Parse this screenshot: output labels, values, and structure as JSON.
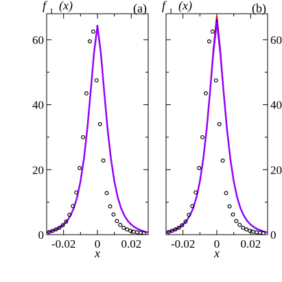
{
  "chart_data": [
    {
      "type": "line",
      "panel_label": "(a)",
      "ylabel": "f",
      "ylabel_sub": "1",
      "ylabel_arg": "(x)",
      "xlabel": "x",
      "xlim": [
        -0.03,
        0.03
      ],
      "ylim": [
        0,
        68
      ],
      "xticks": [
        -0.02,
        0,
        0.02
      ],
      "xtick_labels": [
        "-0.02",
        "0",
        "0.02"
      ],
      "yticks": [
        0,
        20,
        40,
        60
      ],
      "ytick_labels": [
        "0",
        "20",
        "40",
        "60"
      ],
      "ytick_side": "left",
      "grid": false,
      "series": [
        {
          "style": "line",
          "color": "#ff0000",
          "x": [
            -0.03,
            -0.028,
            -0.026,
            -0.024,
            -0.022,
            -0.02,
            -0.018,
            -0.016,
            -0.014,
            -0.012,
            -0.01,
            -0.008,
            -0.006,
            -0.004,
            -0.002,
            0,
            0.002,
            0.004,
            0.006,
            0.008,
            0.01,
            0.012,
            0.014,
            0.016,
            0.018,
            0.02,
            0.022,
            0.024,
            0.026,
            0.028,
            0.03
          ],
          "y": [
            0.7,
            0.9,
            1.3,
            1.7,
            2.3,
            3.1,
            4.2,
            5.8,
            8.1,
            11.5,
            16.4,
            23.3,
            32.5,
            44.0,
            56.0,
            64.3,
            56.0,
            44.0,
            32.5,
            23.3,
            16.4,
            11.5,
            8.1,
            5.8,
            4.2,
            3.1,
            2.3,
            1.7,
            1.3,
            0.9,
            0.7
          ]
        },
        {
          "style": "line",
          "color": "#0000ff",
          "x": [
            -0.03,
            -0.028,
            -0.026,
            -0.024,
            -0.022,
            -0.02,
            -0.018,
            -0.016,
            -0.014,
            -0.012,
            -0.01,
            -0.008,
            -0.006,
            -0.004,
            -0.002,
            0,
            0.002,
            0.004,
            0.006,
            0.008,
            0.01,
            0.012,
            0.014,
            0.016,
            0.018,
            0.02,
            0.022,
            0.024,
            0.026,
            0.028,
            0.03
          ],
          "y": [
            0.7,
            0.9,
            1.3,
            1.7,
            2.3,
            3.1,
            4.2,
            5.8,
            8.1,
            11.5,
            16.4,
            23.3,
            32.5,
            44.0,
            56.0,
            64.3,
            56.0,
            44.0,
            32.5,
            23.3,
            16.4,
            11.5,
            8.1,
            5.8,
            4.2,
            3.1,
            2.3,
            1.7,
            1.3,
            0.9,
            0.7
          ]
        },
        {
          "style": "line",
          "color": "#9900ff",
          "x": [
            -0.03,
            -0.028,
            -0.026,
            -0.024,
            -0.022,
            -0.02,
            -0.018,
            -0.016,
            -0.014,
            -0.012,
            -0.01,
            -0.008,
            -0.006,
            -0.004,
            -0.002,
            0,
            0.002,
            0.004,
            0.006,
            0.008,
            0.01,
            0.012,
            0.014,
            0.016,
            0.018,
            0.02,
            0.022,
            0.024,
            0.026,
            0.028,
            0.03
          ],
          "y": [
            0.7,
            0.9,
            1.3,
            1.7,
            2.3,
            3.1,
            4.2,
            5.8,
            8.1,
            11.5,
            16.4,
            23.3,
            32.5,
            44.0,
            56.0,
            64.0,
            56.0,
            44.0,
            32.5,
            23.3,
            16.4,
            11.5,
            8.1,
            5.8,
            4.2,
            3.1,
            2.3,
            1.7,
            1.3,
            0.9,
            0.7
          ]
        },
        {
          "style": "markers",
          "marker": "open-circle",
          "color": "#000000",
          "x": [
            -0.0285,
            -0.0265,
            -0.0245,
            -0.0225,
            -0.0205,
            -0.0185,
            -0.0165,
            -0.0145,
            -0.0125,
            -0.0105,
            -0.0085,
            -0.0065,
            -0.0045,
            -0.0025,
            -0.0005,
            0.0015,
            0.0035,
            0.0055,
            0.0075,
            0.0095,
            0.0115,
            0.0135,
            0.0155,
            0.0175,
            0.0195,
            0.0215,
            0.0235,
            0.0255,
            0.0275
          ],
          "y": [
            0.8,
            1.2,
            1.6,
            2.1,
            2.9,
            4.0,
            6.1,
            8.8,
            13.0,
            20.5,
            30.0,
            43.5,
            59.5,
            62.5,
            47.5,
            34.0,
            22.8,
            12.8,
            8.7,
            6.2,
            4.2,
            3.0,
            2.1,
            1.6,
            1.2,
            0.9,
            0.7,
            0.6,
            0.5
          ]
        }
      ]
    },
    {
      "type": "line",
      "panel_label": "(b)",
      "ylabel": "f",
      "ylabel_sub": "1",
      "ylabel_arg": "(x)",
      "xlabel": "x",
      "xlim": [
        -0.03,
        0.03
      ],
      "ylim": [
        0,
        68
      ],
      "xticks": [
        -0.02,
        0,
        0.02
      ],
      "xtick_labels": [
        "-0.02",
        "0",
        "0.02"
      ],
      "yticks": [
        0,
        20,
        40,
        60
      ],
      "ytick_labels": [
        "0",
        "20",
        "40",
        "60"
      ],
      "ytick_side": "right",
      "grid": false,
      "series": [
        {
          "style": "line",
          "color": "#ff0000",
          "x": [
            -0.03,
            -0.028,
            -0.026,
            -0.024,
            -0.022,
            -0.02,
            -0.018,
            -0.016,
            -0.014,
            -0.012,
            -0.01,
            -0.008,
            -0.006,
            -0.004,
            -0.002,
            0,
            0.002,
            0.004,
            0.006,
            0.008,
            0.01,
            0.012,
            0.014,
            0.016,
            0.018,
            0.02,
            0.022,
            0.024,
            0.026,
            0.028,
            0.03
          ],
          "y": [
            0.7,
            0.9,
            1.3,
            1.7,
            2.3,
            3.1,
            4.2,
            5.8,
            8.1,
            11.5,
            16.4,
            23.3,
            32.5,
            44.0,
            57.0,
            67.2,
            57.0,
            44.0,
            32.5,
            23.3,
            16.4,
            11.5,
            8.1,
            5.8,
            4.2,
            3.1,
            2.3,
            1.7,
            1.3,
            0.9,
            0.7
          ]
        },
        {
          "style": "line",
          "color": "#0000ff",
          "x": [
            -0.03,
            -0.028,
            -0.026,
            -0.024,
            -0.022,
            -0.02,
            -0.018,
            -0.016,
            -0.014,
            -0.012,
            -0.01,
            -0.008,
            -0.006,
            -0.004,
            -0.002,
            0,
            0.002,
            0.004,
            0.006,
            0.008,
            0.01,
            0.012,
            0.014,
            0.016,
            0.018,
            0.02,
            0.022,
            0.024,
            0.026,
            0.028,
            0.03
          ],
          "y": [
            0.7,
            0.9,
            1.3,
            1.7,
            2.3,
            3.1,
            4.2,
            5.8,
            8.1,
            11.5,
            16.4,
            23.3,
            32.5,
            44.0,
            56.5,
            66.1,
            56.5,
            44.0,
            32.5,
            23.3,
            16.4,
            11.5,
            8.1,
            5.8,
            4.2,
            3.1,
            2.3,
            1.7,
            1.3,
            0.9,
            0.7
          ]
        },
        {
          "style": "line",
          "color": "#9900ff",
          "x": [
            -0.03,
            -0.028,
            -0.026,
            -0.024,
            -0.022,
            -0.02,
            -0.018,
            -0.016,
            -0.014,
            -0.012,
            -0.01,
            -0.008,
            -0.006,
            -0.004,
            -0.002,
            0,
            0.002,
            0.004,
            0.006,
            0.008,
            0.01,
            0.012,
            0.014,
            0.016,
            0.018,
            0.02,
            0.022,
            0.024,
            0.026,
            0.028,
            0.03
          ],
          "y": [
            0.7,
            0.9,
            1.3,
            1.7,
            2.3,
            3.1,
            4.2,
            5.8,
            8.1,
            11.5,
            16.4,
            23.3,
            32.5,
            44.0,
            56.0,
            65.3,
            56.0,
            44.0,
            32.5,
            23.3,
            16.4,
            11.5,
            8.1,
            5.8,
            4.2,
            3.1,
            2.3,
            1.7,
            1.3,
            0.9,
            0.7
          ]
        },
        {
          "style": "markers",
          "marker": "open-circle",
          "color": "#000000",
          "x": [
            -0.0285,
            -0.0265,
            -0.0245,
            -0.0225,
            -0.0205,
            -0.0185,
            -0.0165,
            -0.0145,
            -0.0125,
            -0.0105,
            -0.0085,
            -0.0065,
            -0.0045,
            -0.0025,
            -0.0005,
            0.0015,
            0.0035,
            0.0055,
            0.0075,
            0.0095,
            0.0115,
            0.0135,
            0.0155,
            0.0175,
            0.0195,
            0.0215,
            0.0235,
            0.0255,
            0.0275
          ],
          "y": [
            0.8,
            1.2,
            1.6,
            2.1,
            2.9,
            4.0,
            6.1,
            8.8,
            13.0,
            20.5,
            30.0,
            43.5,
            59.5,
            62.5,
            47.5,
            34.0,
            22.8,
            12.8,
            8.7,
            6.2,
            4.2,
            3.0,
            2.1,
            1.6,
            1.2,
            0.9,
            0.7,
            0.6,
            0.5
          ]
        }
      ]
    }
  ]
}
